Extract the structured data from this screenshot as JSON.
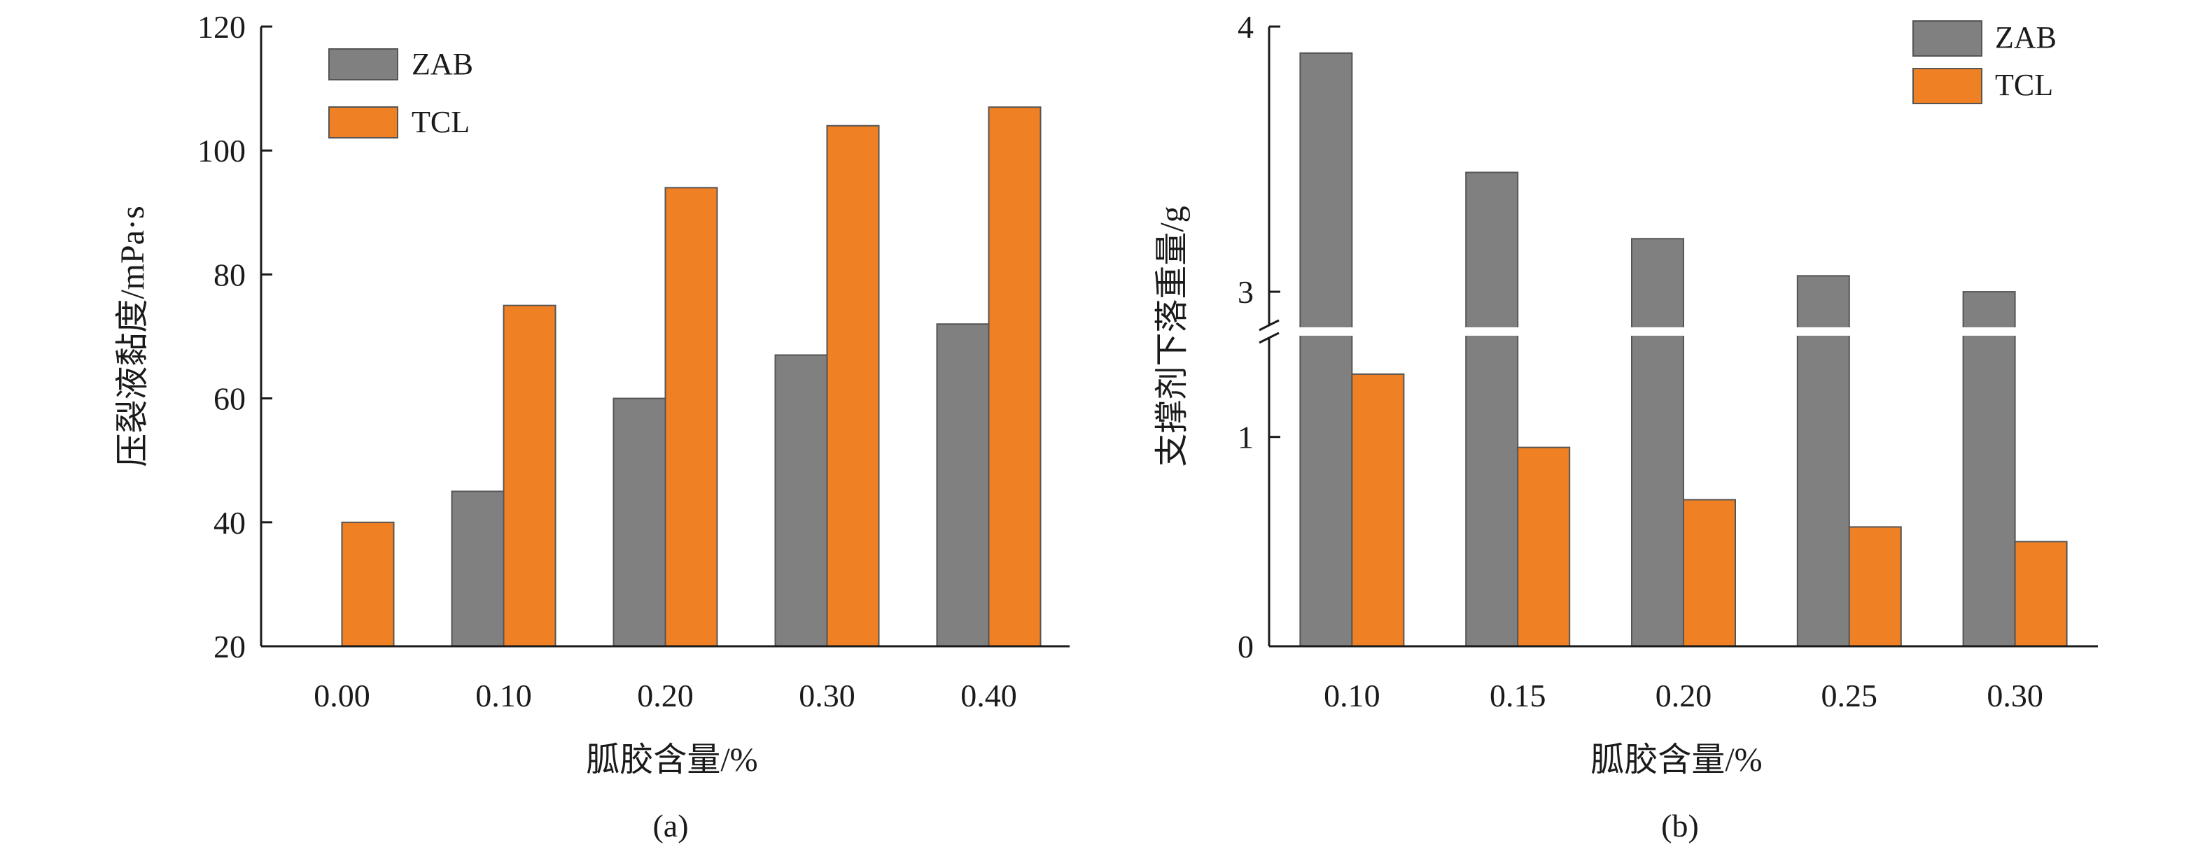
{
  "colors": {
    "ZAB": "#808080",
    "TCL": "#f08024",
    "axis": "#1a1a1a"
  },
  "chart_data": [
    {
      "type": "bar",
      "panel_label": "(a)",
      "xlabel": "胍胶含量/%",
      "ylabel": "压裂液黏度/mPa·s",
      "categories": [
        "0.00",
        "0.10",
        "0.20",
        "0.30",
        "0.40"
      ],
      "ylim": [
        20,
        120
      ],
      "yticks": [
        "20",
        "40",
        "60",
        "80",
        "100",
        "120"
      ],
      "series": [
        {
          "name": "ZAB",
          "values": [
            null,
            45,
            60,
            67,
            72
          ]
        },
        {
          "name": "TCL",
          "values": [
            40,
            75,
            94,
            104,
            107
          ]
        }
      ],
      "legend_position": "top-left",
      "grid": false
    },
    {
      "type": "bar",
      "panel_label": "(b)",
      "xlabel": "胍胶含量/%",
      "ylabel": "支撑剂下落重量/g",
      "categories": [
        "0.10",
        "0.15",
        "0.20",
        "0.25",
        "0.30"
      ],
      "yticks": [
        "0",
        "1",
        "3",
        "4"
      ],
      "axis_break": {
        "lower_range": [
          0,
          1.45
        ],
        "upper_range": [
          2.9,
          4
        ]
      },
      "series": [
        {
          "name": "ZAB",
          "values": [
            3.9,
            3.45,
            3.2,
            3.06,
            3.0
          ]
        },
        {
          "name": "TCL",
          "values": [
            1.3,
            0.95,
            0.7,
            0.57,
            0.5
          ]
        }
      ],
      "legend_position": "top-right",
      "grid": false
    }
  ]
}
